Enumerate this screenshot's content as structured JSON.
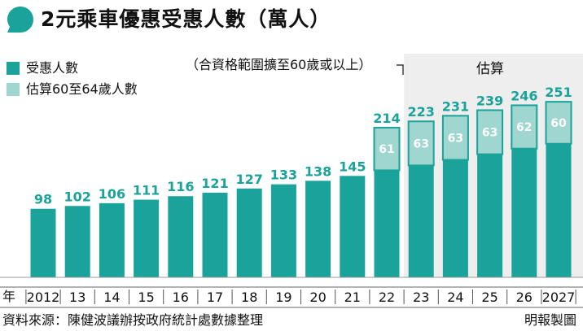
{
  "title": "2元乘車優惠受惠人數（萬人）",
  "legend": {
    "beneficiaries": "受惠人數",
    "estimate_60_64": "估算60至64歲人數"
  },
  "annotation_note": "（合資格範圍擴至60歲或以上）",
  "estimate_label": "估算",
  "xaxis_prefix": "年",
  "source": "資料來源：陳健波議辦按政府統計處數據整理",
  "brand": "明報製圖",
  "colors": {
    "teal": "#1aa39a",
    "light_teal": "#9fd6cf",
    "estimate_bg": "#eeeeee"
  },
  "chart_data": {
    "type": "bar",
    "title": "2元乘車優惠受惠人數（萬人）",
    "unit": "萬人",
    "categories": [
      "2012",
      "13",
      "14",
      "15",
      "16",
      "17",
      "18",
      "19",
      "20",
      "21",
      "22",
      "23",
      "24",
      "25",
      "26",
      "2027"
    ],
    "totals": [
      98,
      102,
      106,
      111,
      116,
      121,
      127,
      133,
      138,
      145,
      214,
      223,
      231,
      239,
      246,
      251
    ],
    "series": [
      {
        "name": "受惠人數",
        "values": [
          98,
          102,
          106,
          111,
          116,
          121,
          127,
          133,
          138,
          145,
          153,
          160,
          168,
          176,
          184,
          191
        ]
      },
      {
        "name": "估算60至64歲人數",
        "values": [
          0,
          0,
          0,
          0,
          0,
          0,
          0,
          0,
          0,
          0,
          61,
          63,
          63,
          63,
          62,
          60
        ]
      }
    ],
    "estimate_period": [
      "23",
      "2027"
    ],
    "ylim": [
      0,
      260
    ]
  }
}
